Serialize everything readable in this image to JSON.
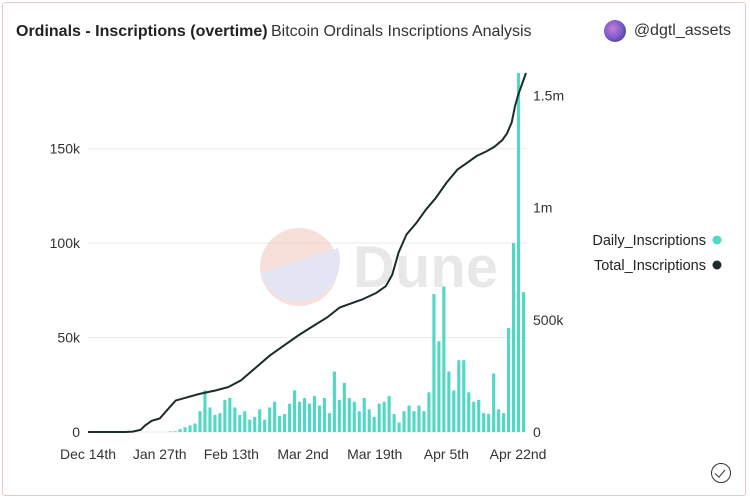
{
  "header": {
    "title": "Ordinals - Inscriptions (overtime)",
    "subtitle": "Bitcoin Ordinals Inscriptions Analysis",
    "author": "@dgtl_assets"
  },
  "watermark": "Dune",
  "colors": {
    "daily": "#4fd8c4",
    "total": "#1c2b2b",
    "grid": "#ecebe8",
    "axis_text": "#333333"
  },
  "chart_data": {
    "type": "bar",
    "x_tick_labels": [
      "Dec 14th",
      "Jan 27th",
      "Feb 13th",
      "Mar 2nd",
      "Mar 19th",
      "Apr 5th",
      "Apr 22nd"
    ],
    "left_axis": {
      "ticks": [
        "0",
        "50k",
        "100k",
        "150k"
      ],
      "ylim": [
        0,
        190000
      ]
    },
    "right_axis": {
      "ticks": [
        "0",
        "500k",
        "1m",
        "1.5m"
      ],
      "ylim": [
        0,
        1600000
      ]
    },
    "legend": [
      "Daily_Inscriptions",
      "Total_Inscriptions"
    ],
    "legend_position": "right",
    "grid": true,
    "series": [
      {
        "name": "Daily_Inscriptions",
        "type": "bar",
        "axis": "left",
        "values": [
          300,
          400,
          1500,
          2500,
          3500,
          4500,
          11000,
          22000,
          13000,
          9000,
          10000,
          17000,
          18000,
          13000,
          9000,
          11000,
          6500,
          8000,
          12000,
          6500,
          13000,
          16000,
          8500,
          9500,
          15000,
          22000,
          16000,
          18000,
          15000,
          19000,
          14000,
          18000,
          10000,
          32000,
          17000,
          26000,
          18000,
          16000,
          11000,
          18000,
          12000,
          8000,
          15000,
          16000,
          19000,
          9500,
          5000,
          11000,
          14000,
          11000,
          14000,
          11000,
          21000,
          73000,
          48000,
          77000,
          32000,
          22000,
          38000,
          38000,
          21000,
          16000,
          17000,
          10000,
          9500,
          31000,
          12000,
          10000,
          55000,
          100000,
          190000,
          74000
        ]
      },
      {
        "name": "Total_Inscriptions",
        "type": "line",
        "axis": "right",
        "points": [
          [
            0,
            0
          ],
          [
            15,
            0
          ],
          [
            23,
            0
          ],
          [
            28,
            2000
          ],
          [
            33,
            10000
          ],
          [
            36,
            30000
          ],
          [
            40,
            50000
          ],
          [
            45,
            60000
          ],
          [
            50,
            100000
          ],
          [
            55,
            140000
          ],
          [
            60,
            150000
          ],
          [
            70,
            170000
          ],
          [
            80,
            185000
          ],
          [
            88,
            200000
          ],
          [
            96,
            230000
          ],
          [
            105,
            285000
          ],
          [
            114,
            340000
          ],
          [
            123,
            385000
          ],
          [
            132,
            430000
          ],
          [
            142,
            475000
          ],
          [
            150,
            510000
          ],
          [
            158,
            555000
          ],
          [
            164,
            570000
          ],
          [
            172,
            590000
          ],
          [
            181,
            620000
          ],
          [
            187,
            650000
          ],
          [
            191,
            700000
          ],
          [
            195,
            800000
          ],
          [
            200,
            880000
          ],
          [
            206,
            930000
          ],
          [
            212,
            990000
          ],
          [
            218,
            1040000
          ],
          [
            225,
            1110000
          ],
          [
            232,
            1170000
          ],
          [
            238,
            1200000
          ],
          [
            244,
            1230000
          ],
          [
            250,
            1250000
          ],
          [
            255,
            1270000
          ],
          [
            260,
            1300000
          ],
          [
            263,
            1330000
          ],
          [
            266,
            1380000
          ],
          [
            268,
            1450000
          ],
          [
            270,
            1500000
          ],
          [
            273,
            1560000
          ],
          [
            275,
            1600000
          ]
        ]
      }
    ]
  }
}
